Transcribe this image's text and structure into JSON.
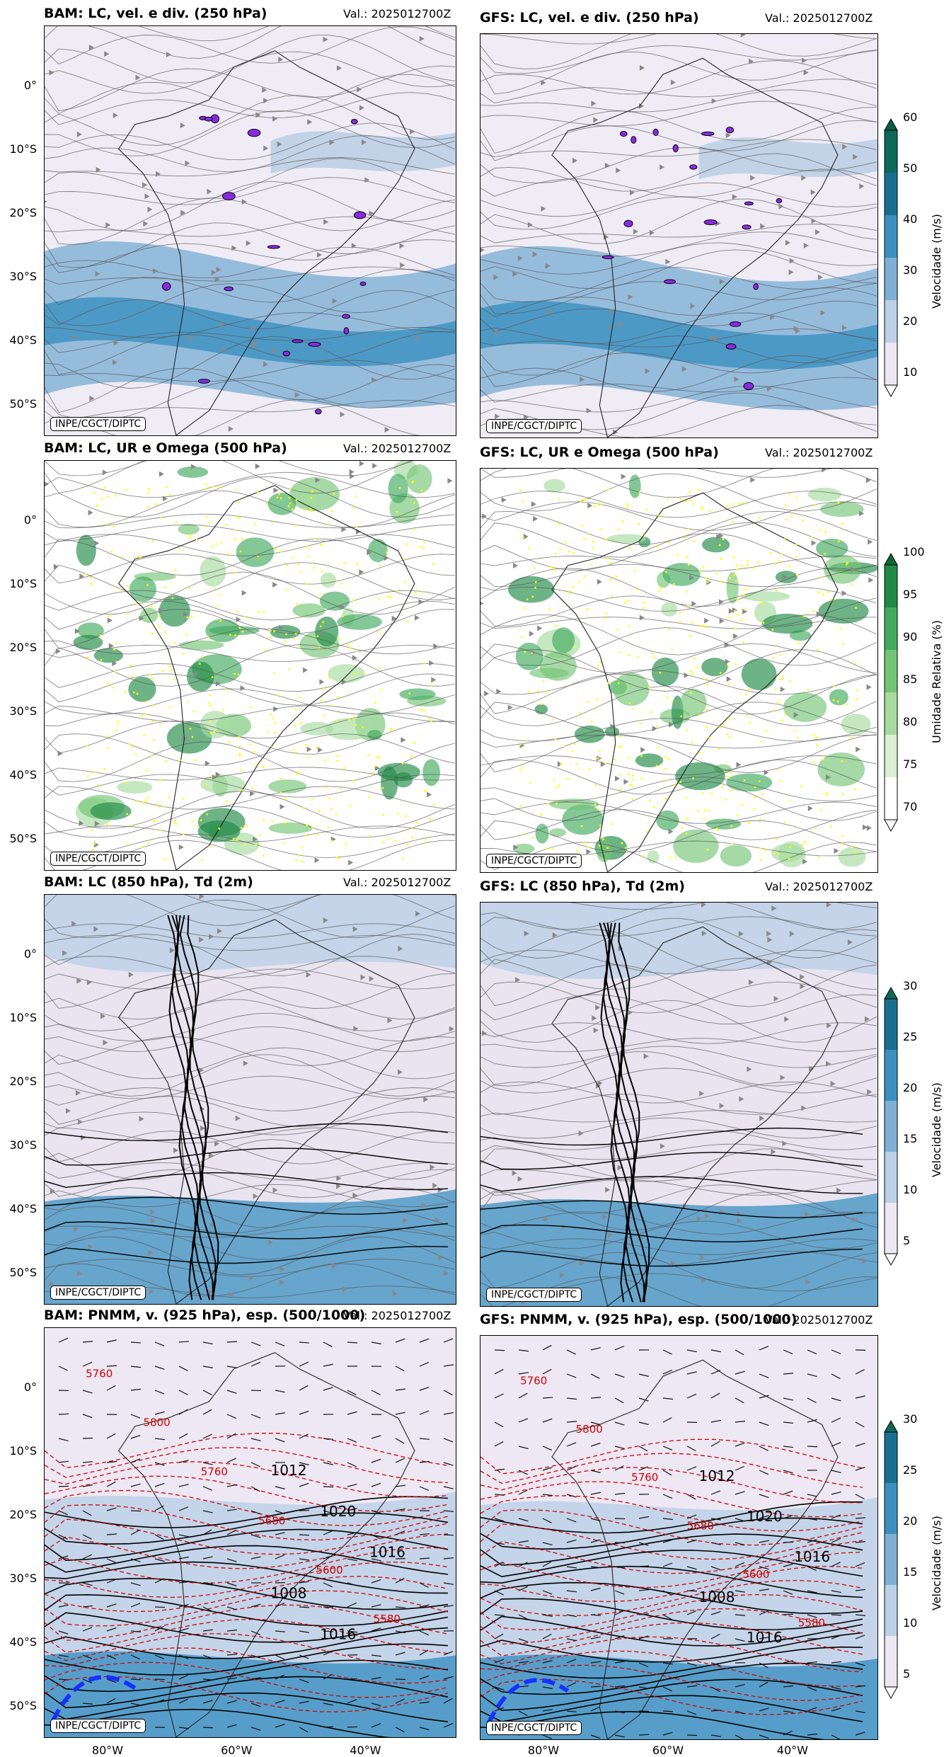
{
  "badge": "INPE/CGCT/DIPTC",
  "valid": "Val.: 2025012700Z",
  "yticks": [
    "0°",
    "10°S",
    "20°S",
    "30°S",
    "40°S",
    "50°S"
  ],
  "xticks": [
    "80°W",
    "60°W",
    "40°W"
  ],
  "rows": [
    {
      "left_title": "BAM: LC, vel. e div. (250 hPa)",
      "right_title": "GFS: LC, vel. e div. (250 hPa)",
      "colorbar": {
        "label": "Velocidade (m/s)",
        "ticks": [
          "10",
          "20",
          "30",
          "40",
          "50",
          "60"
        ],
        "colors": [
          "#ece7f2",
          "#bcd0e6",
          "#7fb0d6",
          "#3b90c0",
          "#1a6f90",
          "#0d6a58"
        ],
        "cap": "#0b5d46"
      },
      "theme": "wind250"
    },
    {
      "left_title": "BAM: LC, UR e Omega (500 hPa)",
      "right_title": "GFS: LC, UR e Omega (500 hPa)",
      "colorbar": {
        "label": "Umidade Relativa (%)",
        "ticks": [
          "70",
          "75",
          "80",
          "85",
          "90",
          "95",
          "100"
        ],
        "colors": [
          "#ffffff",
          "#d9f0d3",
          "#a6dba0",
          "#74c476",
          "#41ab5d",
          "#1f8a45"
        ],
        "cap": "#0b6b30"
      },
      "theme": "rh500"
    },
    {
      "left_title": "BAM: LC (850 hPa), Td (2m)",
      "right_title": "GFS: LC (850 hPa), Td (2m)",
      "colorbar": {
        "label": "Velocidade (m/s)",
        "ticks": [
          "5",
          "10",
          "15",
          "20",
          "25",
          "30"
        ],
        "colors": [
          "#ece7f2",
          "#bcd0e6",
          "#7fb0d6",
          "#3b90c0",
          "#1a6f90"
        ],
        "cap": "#0d6a58"
      },
      "theme": "wind850"
    },
    {
      "left_title": "BAM: PNMM, v. (925 hPa), esp. (500/1000)",
      "right_title": "GFS: PNMM, v. (925 hPa), esp. (500/1000)",
      "colorbar": {
        "label": "Velocidade (m/s)",
        "ticks": [
          "5",
          "10",
          "15",
          "20",
          "25",
          "30"
        ],
        "colors": [
          "#ece7f2",
          "#bcd0e6",
          "#7fb0d6",
          "#3b90c0",
          "#1a6f90"
        ],
        "cap": "#0d6a58"
      },
      "theme": "pnmm"
    }
  ],
  "pnmm_labels": {
    "thickness": [
      "5760",
      "5800",
      "5760",
      "5680",
      "5600",
      "5580"
    ],
    "pressure": [
      "1012",
      "1020",
      "1016",
      "1008",
      "1016"
    ]
  }
}
